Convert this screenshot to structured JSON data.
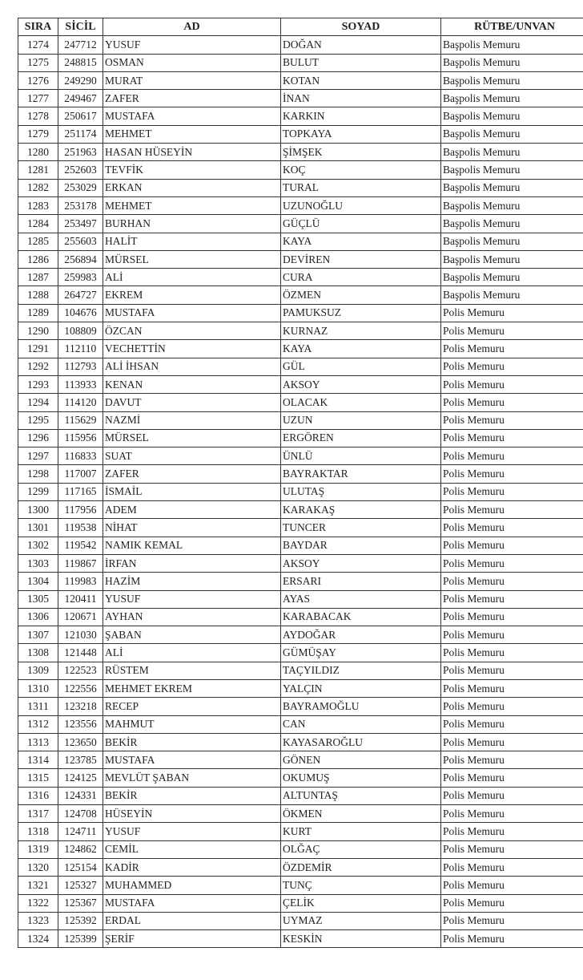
{
  "headers": {
    "sira": "SIRA",
    "sicil": "SİCİL",
    "ad": "AD",
    "soyad": "SOYAD",
    "rutbe": "RÜTBE/UNVAN"
  },
  "rows": [
    [
      "1274",
      "247712",
      "YUSUF",
      "DOĞAN",
      "Başpolis Memuru"
    ],
    [
      "1275",
      "248815",
      "OSMAN",
      "BULUT",
      "Başpolis Memuru"
    ],
    [
      "1276",
      "249290",
      "MURAT",
      "KOTAN",
      "Başpolis Memuru"
    ],
    [
      "1277",
      "249467",
      "ZAFER",
      "İNAN",
      "Başpolis Memuru"
    ],
    [
      "1278",
      "250617",
      "MUSTAFA",
      "KARKIN",
      "Başpolis Memuru"
    ],
    [
      "1279",
      "251174",
      "MEHMET",
      "TOPKAYA",
      "Başpolis Memuru"
    ],
    [
      "1280",
      "251963",
      "HASAN HÜSEYİN",
      "ŞİMŞEK",
      "Başpolis Memuru"
    ],
    [
      "1281",
      "252603",
      "TEVFİK",
      "KOÇ",
      "Başpolis Memuru"
    ],
    [
      "1282",
      "253029",
      "ERKAN",
      "TURAL",
      "Başpolis Memuru"
    ],
    [
      "1283",
      "253178",
      "MEHMET",
      "UZUNOĞLU",
      "Başpolis Memuru"
    ],
    [
      "1284",
      "253497",
      "BURHAN",
      "GÜÇLÜ",
      "Başpolis Memuru"
    ],
    [
      "1285",
      "255603",
      "HALİT",
      "KAYA",
      "Başpolis Memuru"
    ],
    [
      "1286",
      "256894",
      "MÜRSEL",
      "DEVİREN",
      "Başpolis Memuru"
    ],
    [
      "1287",
      "259983",
      "ALİ",
      "CURA",
      "Başpolis Memuru"
    ],
    [
      "1288",
      "264727",
      "EKREM",
      "ÖZMEN",
      "Başpolis Memuru"
    ],
    [
      "1289",
      "104676",
      "MUSTAFA",
      "PAMUKSUZ",
      "Polis Memuru"
    ],
    [
      "1290",
      "108809",
      "ÖZCAN",
      "KURNAZ",
      "Polis Memuru"
    ],
    [
      "1291",
      "112110",
      "VECHETTİN",
      "KAYA",
      "Polis Memuru"
    ],
    [
      "1292",
      "112793",
      "ALİ İHSAN",
      "GÜL",
      "Polis Memuru"
    ],
    [
      "1293",
      "113933",
      "KENAN",
      "AKSOY",
      "Polis Memuru"
    ],
    [
      "1294",
      "114120",
      "DAVUT",
      "OLACAK",
      "Polis Memuru"
    ],
    [
      "1295",
      "115629",
      "NAZMİ",
      "UZUN",
      "Polis Memuru"
    ],
    [
      "1296",
      "115956",
      "MÜRSEL",
      "ERGÖREN",
      "Polis Memuru"
    ],
    [
      "1297",
      "116833",
      "SUAT",
      "ÜNLÜ",
      "Polis Memuru"
    ],
    [
      "1298",
      "117007",
      "ZAFER",
      "BAYRAKTAR",
      "Polis Memuru"
    ],
    [
      "1299",
      "117165",
      "İSMAİL",
      "ULUTAŞ",
      "Polis Memuru"
    ],
    [
      "1300",
      "117956",
      "ADEM",
      "KARAKAŞ",
      "Polis Memuru"
    ],
    [
      "1301",
      "119538",
      "NİHAT",
      "TUNCER",
      "Polis Memuru"
    ],
    [
      "1302",
      "119542",
      "NAMIK KEMAL",
      "BAYDAR",
      "Polis Memuru"
    ],
    [
      "1303",
      "119867",
      "İRFAN",
      "AKSOY",
      "Polis Memuru"
    ],
    [
      "1304",
      "119983",
      "HAZİM",
      "ERSARI",
      "Polis Memuru"
    ],
    [
      "1305",
      "120411",
      "YUSUF",
      "AYAS",
      "Polis Memuru"
    ],
    [
      "1306",
      "120671",
      "AYHAN",
      "KARABACAK",
      "Polis Memuru"
    ],
    [
      "1307",
      "121030",
      "ŞABAN",
      "AYDOĞAR",
      "Polis Memuru"
    ],
    [
      "1308",
      "121448",
      "ALİ",
      "GÜMÜŞAY",
      "Polis Memuru"
    ],
    [
      "1309",
      "122523",
      "RÜSTEM",
      "TAÇYILDIZ",
      "Polis Memuru"
    ],
    [
      "1310",
      "122556",
      "MEHMET EKREM",
      "YALÇIN",
      "Polis Memuru"
    ],
    [
      "1311",
      "123218",
      "RECEP",
      "BAYRAMOĞLU",
      "Polis Memuru"
    ],
    [
      "1312",
      "123556",
      "MAHMUT",
      "CAN",
      "Polis Memuru"
    ],
    [
      "1313",
      "123650",
      "BEKİR",
      "KAYASAROĞLU",
      "Polis Memuru"
    ],
    [
      "1314",
      "123785",
      "MUSTAFA",
      "GÖNEN",
      "Polis Memuru"
    ],
    [
      "1315",
      "124125",
      "MEVLÜT ŞABAN",
      "OKUMUŞ",
      "Polis Memuru"
    ],
    [
      "1316",
      "124331",
      "BEKİR",
      "ALTUNTAŞ",
      "Polis Memuru"
    ],
    [
      "1317",
      "124708",
      "HÜSEYİN",
      "ÖKMEN",
      "Polis Memuru"
    ],
    [
      "1318",
      "124711",
      "YUSUF",
      "KURT",
      "Polis Memuru"
    ],
    [
      "1319",
      "124862",
      "CEMİL",
      "OLĞAÇ",
      "Polis Memuru"
    ],
    [
      "1320",
      "125154",
      "KADİR",
      "ÖZDEMİR",
      "Polis Memuru"
    ],
    [
      "1321",
      "125327",
      "MUHAMMED",
      "TUNÇ",
      "Polis Memuru"
    ],
    [
      "1322",
      "125367",
      "MUSTAFA",
      "ÇELİK",
      "Polis Memuru"
    ],
    [
      "1323",
      "125392",
      "ERDAL",
      "UYMAZ",
      "Polis Memuru"
    ],
    [
      "1324",
      "125399",
      "ŞERİF",
      "KESKİN",
      "Polis Memuru"
    ]
  ]
}
